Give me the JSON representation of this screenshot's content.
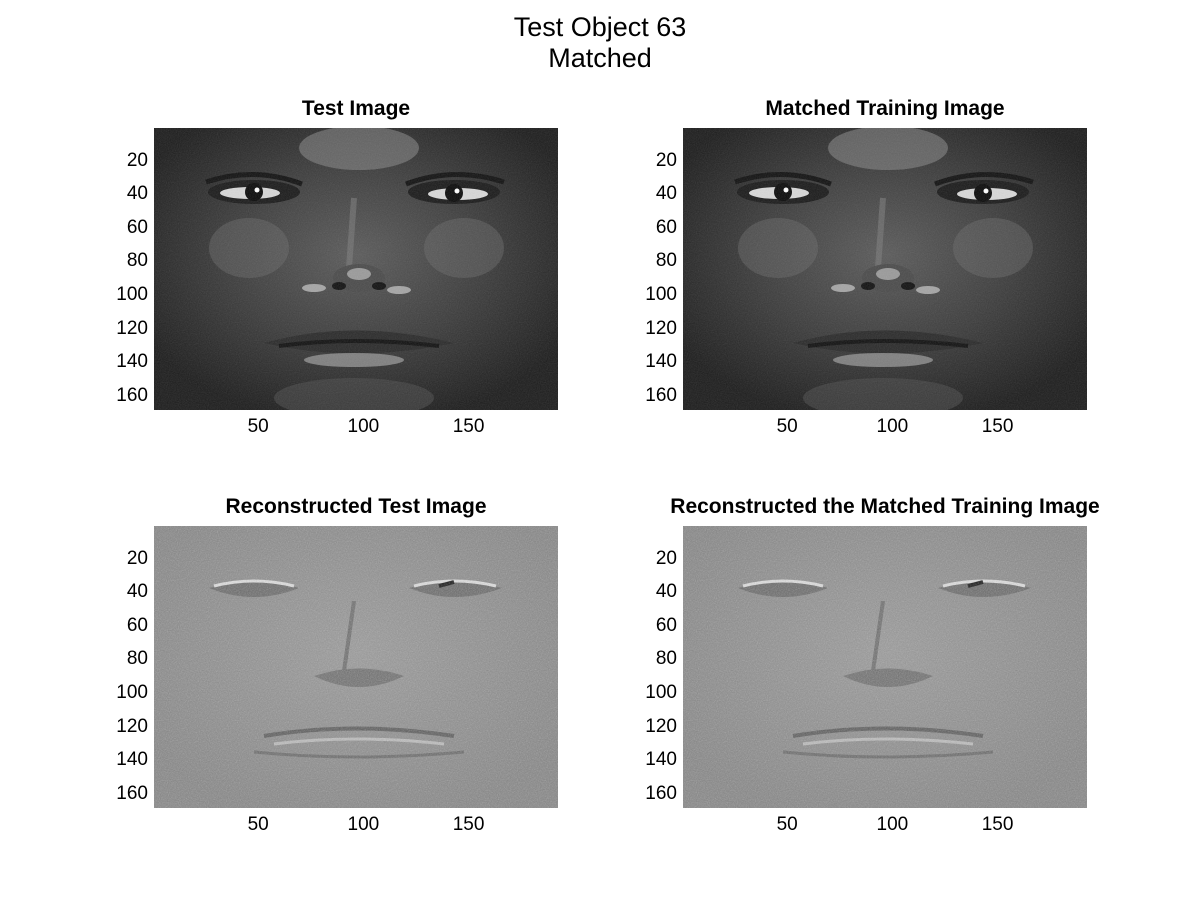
{
  "figure": {
    "title_line1": "Test Object 63",
    "title_line2": "Matched"
  },
  "panels": [
    {
      "title": "Test Image",
      "kind": "photo",
      "image_desc": "grayscale face"
    },
    {
      "title": "Matched Training Image",
      "kind": "photo",
      "image_desc": "grayscale face"
    },
    {
      "title": "Reconstructed Test Image",
      "kind": "reconstructed",
      "image_desc": "reconstructed face"
    },
    {
      "title": "Reconstructed the Matched Training Image",
      "kind": "reconstructed",
      "image_desc": "reconstructed face"
    }
  ],
  "axes": {
    "y_ticks": [
      "20",
      "40",
      "60",
      "80",
      "100",
      "120",
      "140",
      "160"
    ],
    "x_ticks": [
      "50",
      "100",
      "150"
    ],
    "y_values": [
      20,
      40,
      60,
      80,
      100,
      120,
      140,
      160
    ],
    "x_values": [
      50,
      100,
      150
    ],
    "x_range": [
      0.5,
      192.5
    ],
    "y_range": [
      0.5,
      168.5
    ]
  },
  "colors": {
    "photo_background": "#2a2a2a",
    "reconstructed_background": "#8c8c8c"
  }
}
